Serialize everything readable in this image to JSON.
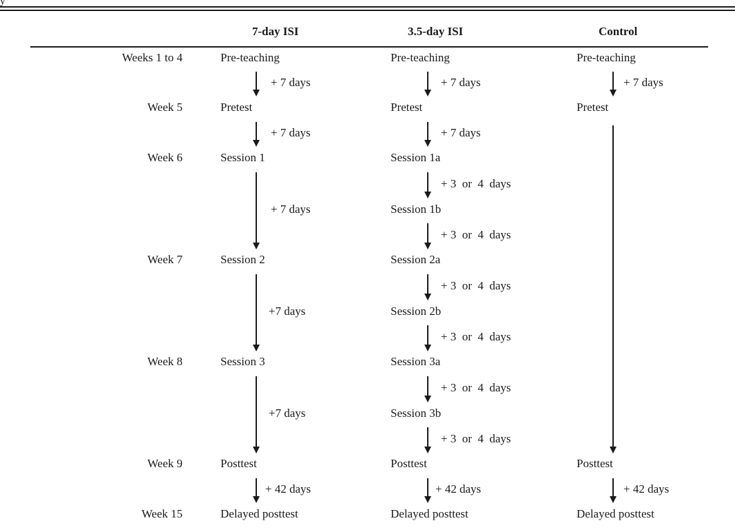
{
  "fragment_text": "y",
  "headers": {
    "col1": "7-day ISI",
    "col2": "3.5-day ISI",
    "col3": "Control"
  },
  "rows": [
    {
      "week": "Weeks 1 to 4",
      "c1": "Pre-teaching",
      "c2": "Pre-teaching",
      "c3": "Pre-teaching"
    },
    {
      "week": "Week 5",
      "c1": "Pretest",
      "c2": "Pretest",
      "c3": "Pretest"
    },
    {
      "week": "Week 6",
      "c1": "Session 1",
      "c2": "Session 1a",
      "c3": ""
    },
    {
      "week": "",
      "c1": "",
      "c2": "Session 1b",
      "c3": ""
    },
    {
      "week": "Week 7",
      "c1": "Session 2",
      "c2": "Session 2a",
      "c3": ""
    },
    {
      "week": "",
      "c1": "",
      "c2": "Session 2b",
      "c3": ""
    },
    {
      "week": "Week 8",
      "c1": "Session 3",
      "c2": "Session 3a",
      "c3": ""
    },
    {
      "week": "",
      "c1": "",
      "c2": "Session 3b",
      "c3": ""
    },
    {
      "week": "Week 9",
      "c1": "Posttest",
      "c2": "Posttest",
      "c3": "Posttest"
    },
    {
      "week": "Week 15",
      "c1": "Delayed posttest",
      "c2": "Delayed posttest",
      "c3": "Delayed posttest"
    }
  ],
  "intervals": {
    "c1": [
      "+ 7 days",
      "+ 7 days",
      "+ 7 days",
      "+7 days",
      "+7 days",
      "+ 42 days"
    ],
    "c2": [
      "+ 7 days",
      "+ 7 days",
      "+ 3  or  4  days",
      "+ 3  or  4  days",
      "+ 3  or  4  days",
      "+ 3  or  4  days",
      "+ 3  or  4  days",
      "+ 3  or  4  days",
      "+ 42 days"
    ],
    "c3": [
      "+ 7 days",
      "+ 42 days"
    ]
  },
  "colors": {
    "ink": "#1a1a1a",
    "background": "#ffffff"
  }
}
